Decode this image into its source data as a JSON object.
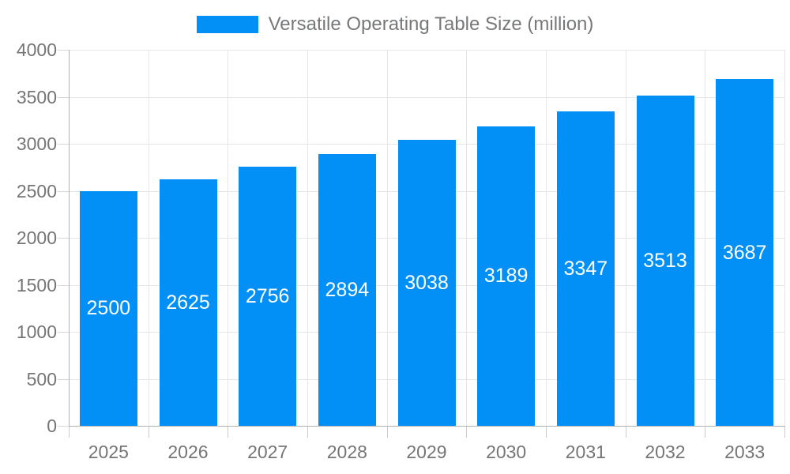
{
  "legend": {
    "label": "Versatile Operating Table Size (million)",
    "swatch_color": "#0290f7"
  },
  "chart_data": {
    "type": "bar",
    "title": "Versatile Operating Table Size (million)",
    "categories": [
      "2025",
      "2026",
      "2027",
      "2028",
      "2029",
      "2030",
      "2031",
      "2032",
      "2033"
    ],
    "values": [
      2500,
      2625,
      2756,
      2894,
      3038,
      3189,
      3347,
      3513,
      3687
    ],
    "xlabel": "",
    "ylabel": "",
    "ylim": [
      0,
      4000
    ],
    "yticks": [
      0,
      500,
      1000,
      1500,
      2000,
      2500,
      3000,
      3500,
      4000
    ],
    "grid": true,
    "legend_position": "top",
    "bar_color": "#0290f7",
    "value_label_color": "#ffffff",
    "axis_label_color": "#757575",
    "grid_color": "#e6e6e6",
    "axis_line_color": "#b3b3b3"
  }
}
